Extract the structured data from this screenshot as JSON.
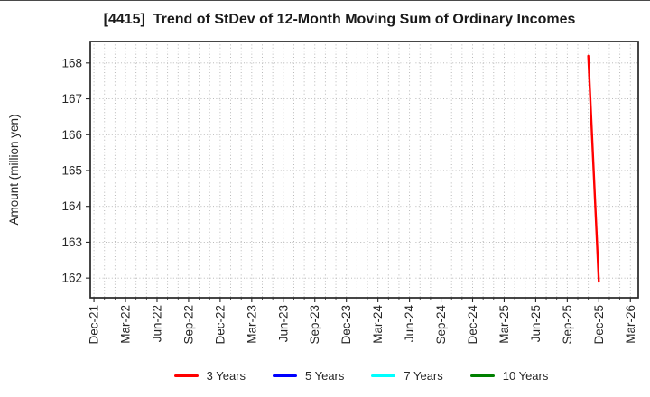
{
  "chart_data": {
    "type": "line",
    "title": "[4415]  Trend of StDev of 12-Month Moving Sum of Ordinary Incomes",
    "ylabel": "Amount (million yen)",
    "xlabel": "",
    "x_tick_labels": [
      "Dec-21",
      "Mar-22",
      "Jun-22",
      "Sep-22",
      "Dec-22",
      "Mar-23",
      "Jun-23",
      "Sep-23",
      "Dec-23",
      "Mar-24",
      "Jun-24",
      "Sep-24",
      "Dec-24",
      "Mar-25",
      "Jun-25",
      "Sep-25",
      "Dec-25",
      "Mar-26"
    ],
    "months_per_labeled_tick": 3,
    "xlim_months": [
      -0.35,
      51.75
    ],
    "yticks": [
      162,
      163,
      164,
      165,
      166,
      167,
      168
    ],
    "ylim": [
      161.45,
      168.6
    ],
    "grid": {
      "horizontal_major": true,
      "vertical_minor_monthly": true,
      "style": "dotted"
    },
    "legend_position": "bottom",
    "colors": {
      "grid": "#b0b0b0",
      "frame": "#262626",
      "tick_text": "#262626"
    },
    "series": [
      {
        "name": "3 Years",
        "color": "#ff0000",
        "points": [
          {
            "label": "Nov-25",
            "month_index": 47,
            "value": 168.2
          },
          {
            "label": "Dec-25",
            "month_index": 48,
            "value": 161.9
          }
        ]
      },
      {
        "name": "5 Years",
        "color": "#0000ff",
        "points": []
      },
      {
        "name": "7 Years",
        "color": "#00ffff",
        "points": []
      },
      {
        "name": "10 Years",
        "color": "#008000",
        "points": []
      }
    ]
  }
}
